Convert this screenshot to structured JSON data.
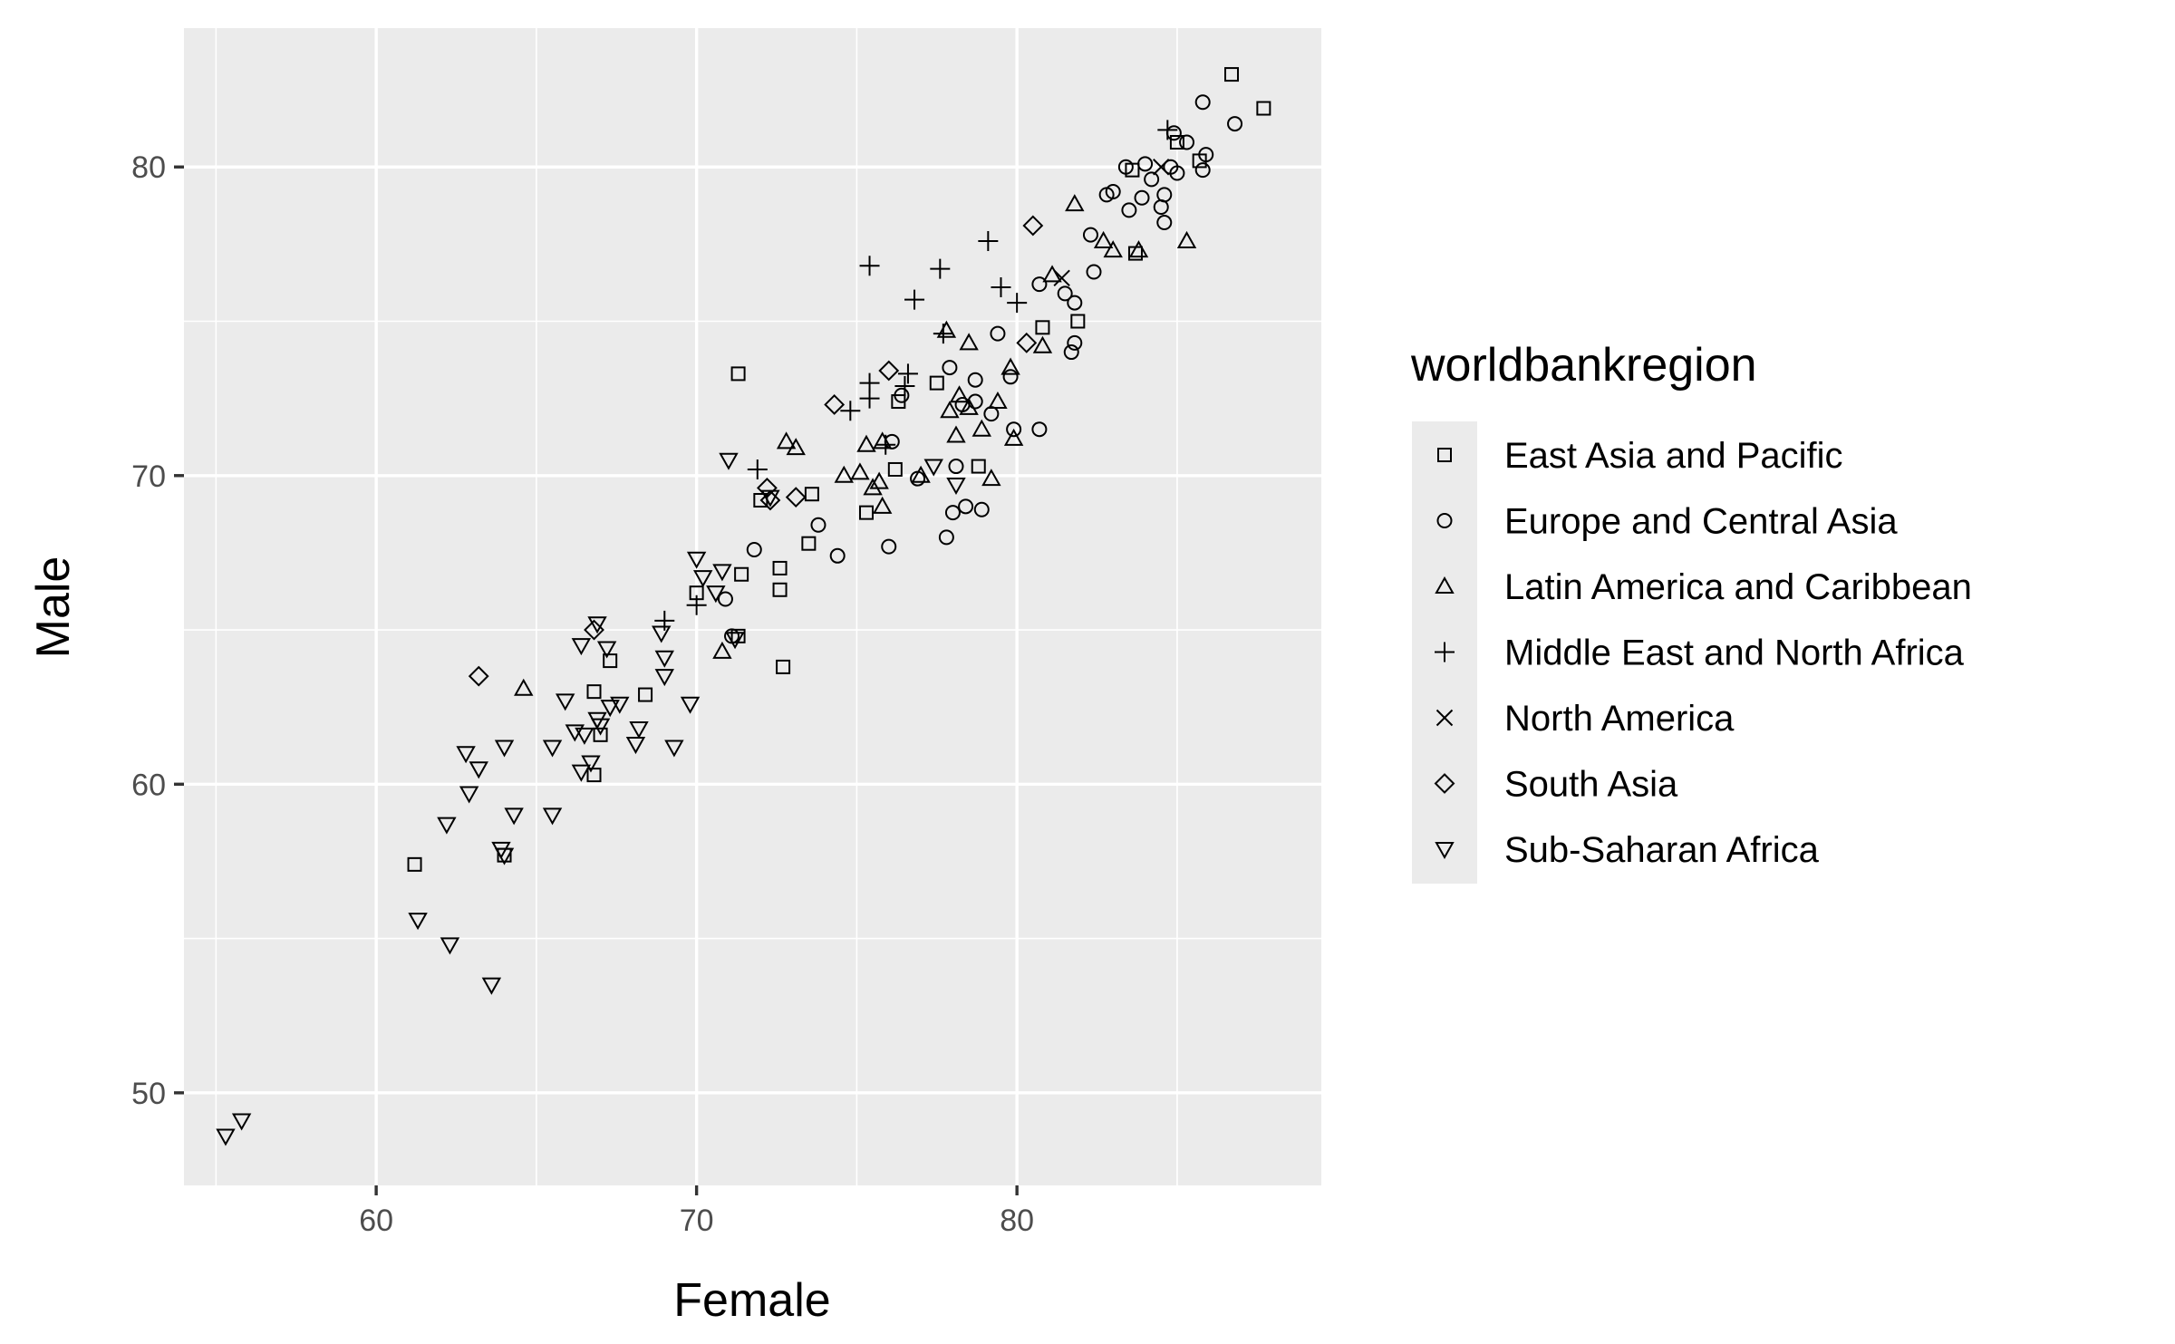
{
  "chart_data": {
    "type": "scatter",
    "title": "",
    "xlabel": "Female",
    "ylabel": "Male",
    "xlim": [
      54,
      89.5
    ],
    "ylim": [
      47,
      84.5
    ],
    "xticks": [
      60,
      70,
      80
    ],
    "yticks": [
      50,
      60,
      70,
      80
    ],
    "grid": true,
    "legend": {
      "title": "worldbankregion",
      "position": "right"
    },
    "series": [
      {
        "name": "East Asia and Pacific",
        "shape": "square",
        "points": [
          [
            86.7,
            83.0
          ],
          [
            87.7,
            81.9
          ],
          [
            85.7,
            80.2
          ],
          [
            83.6,
            79.9
          ],
          [
            85.0,
            80.8
          ],
          [
            83.7,
            77.2
          ],
          [
            81.9,
            75.0
          ],
          [
            80.8,
            74.8
          ],
          [
            71.3,
            73.3
          ],
          [
            77.5,
            73.0
          ],
          [
            76.3,
            72.4
          ],
          [
            73.6,
            69.4
          ],
          [
            72.0,
            69.2
          ],
          [
            76.2,
            70.2
          ],
          [
            78.8,
            70.3
          ],
          [
            75.3,
            68.8
          ],
          [
            73.5,
            67.8
          ],
          [
            72.6,
            67.0
          ],
          [
            72.6,
            66.3
          ],
          [
            71.4,
            66.8
          ],
          [
            70.0,
            66.2
          ],
          [
            71.3,
            64.8
          ],
          [
            72.7,
            63.8
          ],
          [
            68.4,
            62.9
          ],
          [
            66.8,
            63.0
          ],
          [
            67.3,
            64.0
          ],
          [
            67.0,
            61.6
          ],
          [
            66.8,
            60.3
          ],
          [
            64.0,
            57.7
          ],
          [
            61.2,
            57.4
          ]
        ]
      },
      {
        "name": "Europe and Central Asia",
        "shape": "circle",
        "points": [
          [
            85.8,
            82.1
          ],
          [
            86.8,
            81.4
          ],
          [
            84.9,
            81.1
          ],
          [
            85.3,
            80.8
          ],
          [
            85.9,
            80.4
          ],
          [
            83.4,
            80.0
          ],
          [
            84.0,
            80.1
          ],
          [
            84.8,
            80.0
          ],
          [
            85.0,
            79.8
          ],
          [
            84.2,
            79.6
          ],
          [
            85.8,
            79.9
          ],
          [
            83.0,
            79.2
          ],
          [
            82.8,
            79.1
          ],
          [
            84.6,
            79.1
          ],
          [
            84.5,
            78.7
          ],
          [
            83.9,
            79.0
          ],
          [
            83.5,
            78.6
          ],
          [
            82.3,
            77.8
          ],
          [
            84.6,
            78.2
          ],
          [
            82.4,
            76.6
          ],
          [
            81.8,
            75.6
          ],
          [
            81.5,
            75.9
          ],
          [
            80.7,
            76.2
          ],
          [
            81.8,
            74.3
          ],
          [
            81.7,
            74.0
          ],
          [
            79.4,
            74.6
          ],
          [
            79.8,
            73.2
          ],
          [
            78.3,
            72.3
          ],
          [
            77.9,
            73.5
          ],
          [
            78.7,
            73.1
          ],
          [
            78.7,
            72.4
          ],
          [
            79.2,
            72.0
          ],
          [
            76.4,
            72.6
          ],
          [
            79.9,
            71.5
          ],
          [
            80.7,
            71.5
          ],
          [
            76.1,
            71.1
          ],
          [
            78.1,
            70.3
          ],
          [
            76.9,
            69.9
          ],
          [
            78.0,
            68.8
          ],
          [
            78.4,
            69.0
          ],
          [
            78.9,
            68.9
          ],
          [
            77.8,
            68.0
          ],
          [
            73.8,
            68.4
          ],
          [
            74.4,
            67.4
          ],
          [
            76.0,
            67.7
          ],
          [
            71.8,
            67.6
          ],
          [
            70.9,
            66.0
          ],
          [
            71.1,
            64.8
          ]
        ]
      },
      {
        "name": "Latin America and Caribbean",
        "shape": "triangle",
        "points": [
          [
            81.8,
            78.8
          ],
          [
            82.7,
            77.6
          ],
          [
            83.8,
            77.3
          ],
          [
            85.3,
            77.6
          ],
          [
            83.0,
            77.3
          ],
          [
            81.1,
            76.5
          ],
          [
            80.8,
            74.2
          ],
          [
            77.8,
            74.7
          ],
          [
            78.5,
            74.3
          ],
          [
            79.8,
            73.5
          ],
          [
            79.4,
            72.4
          ],
          [
            78.2,
            72.6
          ],
          [
            78.5,
            72.2
          ],
          [
            77.9,
            72.1
          ],
          [
            79.9,
            71.2
          ],
          [
            78.9,
            71.5
          ],
          [
            78.1,
            71.3
          ],
          [
            73.1,
            70.9
          ],
          [
            72.8,
            71.1
          ],
          [
            75.3,
            71.0
          ],
          [
            75.8,
            71.1
          ],
          [
            74.6,
            70.0
          ],
          [
            75.1,
            70.1
          ],
          [
            75.7,
            69.8
          ],
          [
            77.0,
            70.0
          ],
          [
            79.2,
            69.9
          ],
          [
            75.5,
            69.6
          ],
          [
            75.8,
            69.0
          ],
          [
            70.8,
            64.3
          ],
          [
            64.6,
            63.1
          ]
        ]
      },
      {
        "name": "Middle East and North Africa",
        "shape": "plus",
        "points": [
          [
            84.7,
            81.2
          ],
          [
            75.4,
            76.8
          ],
          [
            77.6,
            76.7
          ],
          [
            79.1,
            77.6
          ],
          [
            76.8,
            75.7
          ],
          [
            79.5,
            76.1
          ],
          [
            80.0,
            75.6
          ],
          [
            77.7,
            74.6
          ],
          [
            76.6,
            73.3
          ],
          [
            75.4,
            73.0
          ],
          [
            76.5,
            72.9
          ],
          [
            75.4,
            72.5
          ],
          [
            74.8,
            72.1
          ],
          [
            75.9,
            71.0
          ],
          [
            71.9,
            70.2
          ],
          [
            70.0,
            65.8
          ],
          [
            69.0,
            65.3
          ]
        ]
      },
      {
        "name": "North America",
        "shape": "cross",
        "points": [
          [
            84.5,
            80.0
          ],
          [
            81.4,
            76.4
          ]
        ]
      },
      {
        "name": "South Asia",
        "shape": "diamond",
        "points": [
          [
            80.5,
            78.1
          ],
          [
            80.3,
            74.3
          ],
          [
            76.0,
            73.4
          ],
          [
            74.3,
            72.3
          ],
          [
            72.2,
            69.6
          ],
          [
            72.3,
            69.2
          ],
          [
            73.1,
            69.3
          ],
          [
            66.8,
            65.0
          ],
          [
            63.2,
            63.5
          ]
        ]
      },
      {
        "name": "Sub-Saharan Africa",
        "shape": "triangle-down",
        "points": [
          [
            71.0,
            70.5
          ],
          [
            77.4,
            70.3
          ],
          [
            78.1,
            69.7
          ],
          [
            72.3,
            69.3
          ],
          [
            70.0,
            67.3
          ],
          [
            70.8,
            66.9
          ],
          [
            70.2,
            66.7
          ],
          [
            70.6,
            66.2
          ],
          [
            66.9,
            65.2
          ],
          [
            68.9,
            64.9
          ],
          [
            67.2,
            64.4
          ],
          [
            66.4,
            64.5
          ],
          [
            69.0,
            64.1
          ],
          [
            71.2,
            64.7
          ],
          [
            67.3,
            62.5
          ],
          [
            69.0,
            63.5
          ],
          [
            67.6,
            62.6
          ],
          [
            65.9,
            62.7
          ],
          [
            69.8,
            62.6
          ],
          [
            66.9,
            62.1
          ],
          [
            67.0,
            61.9
          ],
          [
            68.2,
            61.8
          ],
          [
            66.5,
            61.6
          ],
          [
            66.2,
            61.7
          ],
          [
            65.5,
            61.2
          ],
          [
            68.1,
            61.3
          ],
          [
            69.3,
            61.2
          ],
          [
            64.0,
            61.2
          ],
          [
            62.8,
            61.0
          ],
          [
            63.2,
            60.5
          ],
          [
            66.4,
            60.4
          ],
          [
            66.7,
            60.7
          ],
          [
            62.9,
            59.7
          ],
          [
            64.3,
            59.0
          ],
          [
            65.5,
            59.0
          ],
          [
            62.2,
            58.7
          ],
          [
            63.9,
            57.9
          ],
          [
            64.0,
            57.7
          ],
          [
            61.3,
            55.6
          ],
          [
            62.3,
            54.8
          ],
          [
            63.6,
            53.5
          ],
          [
            55.3,
            48.6
          ],
          [
            55.8,
            49.1
          ]
        ]
      }
    ]
  }
}
